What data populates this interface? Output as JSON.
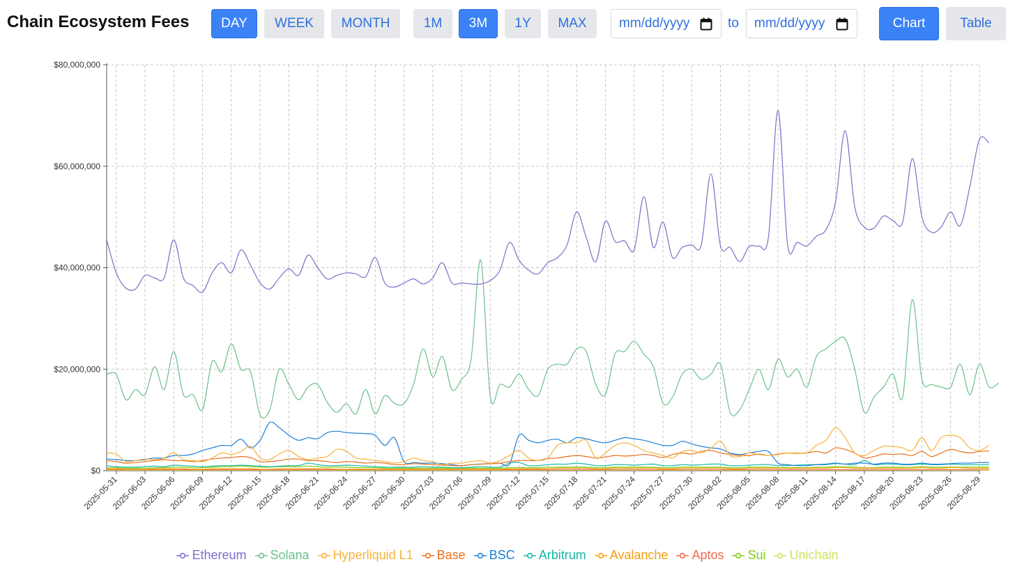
{
  "header": {
    "title": "Chain Ecosystem Fees",
    "granularity": [
      {
        "label": "DAY",
        "active": true
      },
      {
        "label": "WEEK",
        "active": false
      },
      {
        "label": "MONTH",
        "active": false
      }
    ],
    "ranges": [
      {
        "label": "1M",
        "active": false
      },
      {
        "label": "3M",
        "active": true
      },
      {
        "label": "1Y",
        "active": false
      },
      {
        "label": "MAX",
        "active": false
      }
    ],
    "date_from_placeholder": "mm/dd/yyyy",
    "to_label": "to",
    "date_to_placeholder": "mm/dd/yyyy",
    "views": [
      {
        "label": "Chart",
        "active": true
      },
      {
        "label": "Table",
        "active": false
      }
    ]
  },
  "chart_data": {
    "type": "line",
    "ylim": [
      0,
      80000000
    ],
    "yticks": [
      "$0",
      "$20,000,000",
      "$40,000,000",
      "$60,000,000",
      "$80,000,000"
    ],
    "x_start": "2025-05-30",
    "x_end": "2025-08-29",
    "xticks": [
      "2025-05-31",
      "2025-06-03",
      "2025-06-06",
      "2025-06-09",
      "2025-06-12",
      "2025-06-15",
      "2025-06-18",
      "2025-06-21",
      "2025-06-24",
      "2025-06-27",
      "2025-06-30",
      "2025-07-03",
      "2025-07-06",
      "2025-07-09",
      "2025-07-12",
      "2025-07-15",
      "2025-07-18",
      "2025-07-21",
      "2025-07-24",
      "2025-07-27",
      "2025-07-30",
      "2025-08-02",
      "2025-08-05",
      "2025-08-08",
      "2025-08-11",
      "2025-08-14",
      "2025-08-17",
      "2025-08-20",
      "2025-08-23",
      "2025-08-26",
      "2025-08-29"
    ],
    "grid": true,
    "legend_position": "bottom",
    "series": [
      {
        "name": "Ethereum",
        "color": "#7b6fc9",
        "values": [
          45.5,
          39,
          36,
          35.8,
          38.5,
          38,
          38,
          45.5,
          38,
          36.5,
          35.2,
          39,
          41,
          39,
          43.5,
          40.5,
          37,
          35.8,
          38,
          39.8,
          38.5,
          42.5,
          40,
          37.8,
          38.5,
          39,
          38.8,
          38.2,
          42,
          37,
          36.2,
          37,
          37.8,
          36.8,
          38,
          41,
          37,
          37,
          36.8,
          36.8,
          37.5,
          39.5,
          45,
          41.5,
          39.5,
          38.8,
          41,
          42,
          44.5,
          51,
          46,
          41.2,
          49.2,
          45.2,
          45.3,
          43.5,
          54,
          44,
          49,
          42,
          44,
          44.5,
          44.5,
          58.5,
          44.3,
          44,
          41.2,
          44.2,
          44.3,
          46,
          71,
          44.5,
          45,
          44.3,
          46.2,
          47.5,
          53,
          67,
          52,
          48,
          47.8,
          50.2,
          49.3,
          49,
          61.5,
          50,
          47,
          48,
          51,
          48.3,
          56,
          65.3,
          64.6
        ]
      },
      {
        "name": "Solana",
        "color": "#6bbf8a",
        "values": [
          19,
          19,
          14,
          16,
          15,
          20.5,
          16,
          23.5,
          15,
          15,
          12,
          21.5,
          19.5,
          25,
          20,
          19.5,
          11,
          12,
          20,
          17,
          14,
          16.5,
          17,
          13.5,
          11.5,
          13.2,
          11.2,
          16,
          11.2,
          14.8,
          13.3,
          13.2,
          17,
          24,
          18.5,
          22.5,
          16,
          18,
          22,
          41.5,
          14.5,
          17,
          16.5,
          19,
          16,
          14.8,
          20,
          21,
          21,
          24,
          23.5,
          17,
          15,
          23,
          23.5,
          25.5,
          23,
          20.5,
          13.3,
          14.5,
          19,
          20,
          18,
          19,
          21,
          11.5,
          12,
          16,
          20,
          16,
          22,
          18.5,
          20,
          16.5,
          22.5,
          24,
          25.5,
          26,
          20,
          11.5,
          14.5,
          16.5,
          19,
          14.5,
          33.7,
          18,
          17,
          16.5,
          16.5,
          21,
          15,
          21,
          16.5,
          17.3
        ]
      },
      {
        "name": "Hyperliquid L1",
        "color": "#f8b13c",
        "values": [
          3.5,
          3.3,
          1.8,
          2.0,
          2.3,
          2.2,
          2.5,
          3.5,
          2.2,
          2.0,
          1.8,
          2.5,
          3.5,
          3.2,
          3.8,
          4.8,
          2.5,
          2.2,
          3.3,
          4.0,
          2.8,
          2.2,
          2.5,
          2.8,
          4.2,
          3.8,
          2.5,
          2.3,
          2.0,
          1.8,
          1.5,
          1.8,
          2.5,
          2.0,
          1.8,
          1.2,
          1.5,
          1.5,
          1.8,
          2.0,
          1.5,
          2.0,
          3.0,
          4.0,
          2.5,
          2.0,
          2.5,
          5.0,
          5.5,
          5.5,
          6.0,
          2.5,
          3.5,
          5.0,
          5.5,
          5.0,
          4.0,
          3.5,
          3.0,
          2.5,
          3.8,
          4.0,
          3.5,
          4.5,
          5.8,
          3.0,
          2.8,
          3.5,
          3.2,
          3.0,
          3.2,
          3.5,
          3.5,
          3.5,
          5.0,
          6.0,
          8.5,
          6.5,
          3.5,
          3.0,
          4.0,
          4.8,
          4.8,
          4.5,
          4.0,
          6.5,
          4.0,
          6.5,
          7.0,
          6.5,
          4.5,
          4.0,
          5.0
        ]
      },
      {
        "name": "Base",
        "color": "#e8711a",
        "values": [
          2.0,
          1.8,
          1.5,
          1.6,
          1.8,
          2.0,
          2.2,
          2.0,
          2.0,
          1.8,
          2.0,
          2.3,
          2.5,
          2.6,
          2.8,
          2.6,
          1.8,
          1.8,
          2.0,
          2.3,
          2.3,
          2.0,
          2.0,
          1.8,
          1.6,
          1.8,
          1.7,
          1.5,
          1.6,
          1.5,
          1.2,
          1.2,
          1.4,
          1.3,
          1.2,
          1.1,
          1.0,
          1.0,
          1.2,
          1.3,
          1.4,
          1.5,
          1.8,
          2.0,
          2.0,
          2.0,
          2.4,
          2.5,
          2.8,
          3.0,
          2.8,
          2.5,
          2.7,
          3.0,
          2.9,
          3.0,
          3.2,
          3.0,
          2.6,
          3.2,
          3.5,
          3.3,
          3.8,
          4.0,
          3.5,
          3.2,
          3.0,
          3.0,
          3.3,
          3.0,
          3.3,
          3.5,
          3.4,
          3.5,
          3.8,
          3.5,
          4.5,
          4.2,
          3.5,
          2.5,
          2.8,
          3.3,
          3.2,
          3.3,
          3.0,
          3.8,
          2.8,
          3.5,
          4.2,
          3.8,
          3.5,
          3.8,
          3.9
        ]
      },
      {
        "name": "BSC",
        "color": "#1c7fd6",
        "values": [
          2.3,
          2.2,
          2.0,
          2.0,
          2.2,
          2.5,
          2.5,
          3.0,
          3.0,
          3.3,
          4.0,
          4.5,
          5.0,
          5.0,
          6.2,
          4.5,
          6.0,
          9.5,
          8.5,
          7.0,
          6.0,
          6.5,
          6.3,
          7.5,
          7.8,
          7.5,
          7.4,
          7.3,
          7.0,
          5.0,
          6.5,
          1.8,
          1.6,
          1.5,
          1.5,
          1.4,
          1.2,
          1.0,
          1.2,
          1.3,
          1.4,
          1.5,
          1.3,
          7.0,
          6.0,
          5.5,
          6.0,
          6.2,
          5.5,
          6.5,
          6.3,
          5.8,
          5.5,
          6.0,
          6.5,
          6.3,
          6.0,
          5.5,
          5.0,
          5.0,
          5.8,
          5.3,
          4.8,
          4.5,
          4.3,
          3.5,
          3.2,
          3.5,
          3.8,
          3.8,
          1.5,
          1.2,
          1.0,
          1.0,
          1.2,
          1.3,
          1.5,
          1.3,
          1.5,
          1.5,
          1.3,
          1.5,
          1.5,
          1.3,
          1.3,
          1.5,
          1.3,
          1.3,
          1.4,
          1.5,
          1.5,
          1.6,
          1.6
        ]
      },
      {
        "name": "Arbitrum",
        "color": "#14b8a6",
        "values": [
          1.0,
          0.8,
          0.7,
          0.7,
          0.8,
          0.9,
          0.8,
          1.1,
          1.0,
          0.9,
          0.8,
          0.9,
          1.0,
          1.0,
          1.1,
          1.0,
          0.9,
          0.8,
          0.9,
          1.0,
          1.0,
          1.5,
          1.2,
          1.0,
          1.0,
          1.1,
          1.0,
          0.9,
          0.8,
          0.7,
          0.7,
          0.7,
          0.7,
          0.8,
          0.7,
          0.7,
          0.6,
          0.6,
          0.7,
          0.8,
          0.7,
          0.7,
          1.5,
          1.6,
          1.0,
          1.0,
          1.2,
          1.3,
          1.3,
          1.5,
          1.3,
          1.0,
          1.0,
          1.2,
          1.2,
          1.1,
          1.2,
          1.3,
          1.0,
          1.0,
          1.2,
          1.1,
          1.2,
          1.3,
          1.3,
          1.0,
          1.0,
          1.1,
          1.2,
          1.2,
          1.0,
          1.0,
          1.1,
          1.2,
          1.2,
          1.2,
          1.4,
          1.3,
          1.2,
          2.0,
          1.2,
          1.3,
          1.3,
          1.2,
          1.2,
          1.3,
          1.2,
          1.2,
          1.3,
          1.2,
          1.2,
          1.2,
          1.2
        ]
      },
      {
        "name": "Avalanche",
        "color": "#f59e0b",
        "values": [
          0.4,
          0.4,
          0.3,
          0.3,
          0.3,
          0.4,
          0.4,
          0.4,
          0.4,
          0.3,
          0.3,
          0.4,
          0.4,
          0.4,
          0.4,
          0.4,
          0.3,
          0.3,
          0.4,
          0.4,
          0.4,
          0.4,
          0.4,
          0.4,
          0.3,
          0.3,
          0.3,
          0.3,
          0.3,
          0.3,
          0.3,
          0.3,
          0.3,
          0.3,
          0.3,
          0.3,
          0.3,
          0.3,
          0.3,
          0.3,
          0.3,
          0.3,
          0.4,
          0.4,
          0.4,
          0.4,
          0.4,
          0.5,
          0.5,
          0.5,
          0.5,
          0.4,
          0.4,
          0.5,
          0.5,
          0.5,
          0.5,
          0.5,
          0.4,
          0.4,
          0.5,
          0.5,
          0.5,
          0.5,
          0.5,
          0.4,
          0.4,
          0.5,
          0.5,
          0.5,
          0.5,
          0.5,
          0.5,
          0.5,
          0.5,
          0.5,
          0.6,
          0.6,
          0.5,
          0.5,
          0.5,
          0.5,
          0.5,
          0.5,
          0.5,
          0.6,
          0.5,
          0.5,
          0.6,
          0.6,
          0.5,
          0.5,
          0.5
        ]
      },
      {
        "name": "Aptos",
        "color": "#ef6a4a",
        "values": [
          0.2,
          0.2,
          0.2,
          0.2,
          0.2,
          0.2,
          0.2,
          0.2,
          0.2,
          0.2,
          0.2,
          0.2,
          0.2,
          0.2,
          0.2,
          0.2,
          0.2,
          0.2,
          0.2,
          0.2,
          0.2,
          0.2,
          0.2,
          0.2,
          0.2,
          0.2,
          0.2,
          0.2,
          0.2,
          0.2,
          0.2,
          0.2,
          0.2,
          0.2,
          0.2,
          0.2,
          0.2,
          0.2,
          0.2,
          0.2,
          0.2,
          0.2,
          0.2,
          0.2,
          0.2,
          0.2,
          0.2,
          0.2,
          0.2,
          0.2,
          0.2,
          0.2,
          0.2,
          0.2,
          0.2,
          0.2,
          0.2,
          0.2,
          0.2,
          0.2,
          0.2,
          0.2,
          0.2,
          0.2,
          0.2,
          0.2,
          0.2,
          0.2,
          0.2,
          0.2,
          0.2,
          0.2,
          0.2,
          0.2,
          0.2,
          0.2,
          0.2,
          0.2,
          0.2,
          0.2,
          0.2,
          0.2,
          0.2,
          0.2,
          0.2,
          0.2,
          0.2,
          0.2,
          0.2,
          0.2,
          0.2,
          0.2,
          0.2
        ]
      },
      {
        "name": "Sui",
        "color": "#84cc16",
        "values": [
          0.6,
          0.6,
          0.5,
          0.5,
          0.5,
          0.6,
          0.6,
          0.7,
          0.7,
          0.6,
          0.6,
          0.7,
          0.8,
          0.8,
          0.9,
          0.8,
          0.7,
          0.7,
          0.8,
          0.8,
          0.8,
          0.9,
          0.8,
          0.7,
          0.7,
          0.7,
          0.6,
          0.6,
          0.6,
          0.5,
          0.5,
          0.5,
          0.5,
          0.5,
          0.5,
          0.5,
          0.5,
          0.5,
          0.5,
          0.5,
          0.5,
          0.5,
          0.6,
          0.6,
          0.6,
          0.6,
          0.7,
          0.7,
          0.7,
          0.7,
          0.7,
          0.6,
          0.6,
          0.7,
          0.7,
          0.7,
          0.7,
          0.7,
          0.6,
          0.6,
          0.7,
          0.7,
          0.7,
          0.7,
          0.7,
          0.6,
          0.6,
          0.7,
          0.7,
          0.7,
          0.6,
          0.6,
          0.6,
          0.6,
          0.7,
          0.7,
          0.8,
          0.8,
          0.7,
          0.6,
          0.6,
          0.7,
          0.7,
          0.7,
          0.7,
          0.8,
          0.7,
          0.7,
          0.7,
          0.7,
          0.7,
          0.7,
          0.7
        ]
      },
      {
        "name": "Unichain",
        "color": "#cde35a",
        "values": [
          0.1,
          0.1,
          0.1,
          0.1,
          0.1,
          0.1,
          0.1,
          0.1,
          0.1,
          0.1,
          0.1,
          0.1,
          0.1,
          0.1,
          0.1,
          0.1,
          0.1,
          0.1,
          0.1,
          0.1,
          0.1,
          0.1,
          0.1,
          0.1,
          0.1,
          0.1,
          0.1,
          0.1,
          0.1,
          0.1,
          0.1,
          0.1,
          0.1,
          0.1,
          0.1,
          0.1,
          0.1,
          0.1,
          0.1,
          0.1,
          0.1,
          0.1,
          0.1,
          0.1,
          0.1,
          0.1,
          0.1,
          0.1,
          0.1,
          0.1,
          0.1,
          0.1,
          0.1,
          0.1,
          0.1,
          0.1,
          0.1,
          0.1,
          0.1,
          0.1,
          0.1,
          0.1,
          0.1,
          0.1,
          0.1,
          0.1,
          0.1,
          0.1,
          0.1,
          0.1,
          0.1,
          0.1,
          0.1,
          0.1,
          0.1,
          0.1,
          0.1,
          0.1,
          0.1,
          0.1,
          0.1,
          0.1,
          0.1,
          0.1,
          0.1,
          0.1,
          0.1,
          0.1,
          0.1,
          0.1,
          0.1,
          0.1,
          0.1
        ]
      }
    ],
    "value_unit_multiplier": 1000000
  }
}
